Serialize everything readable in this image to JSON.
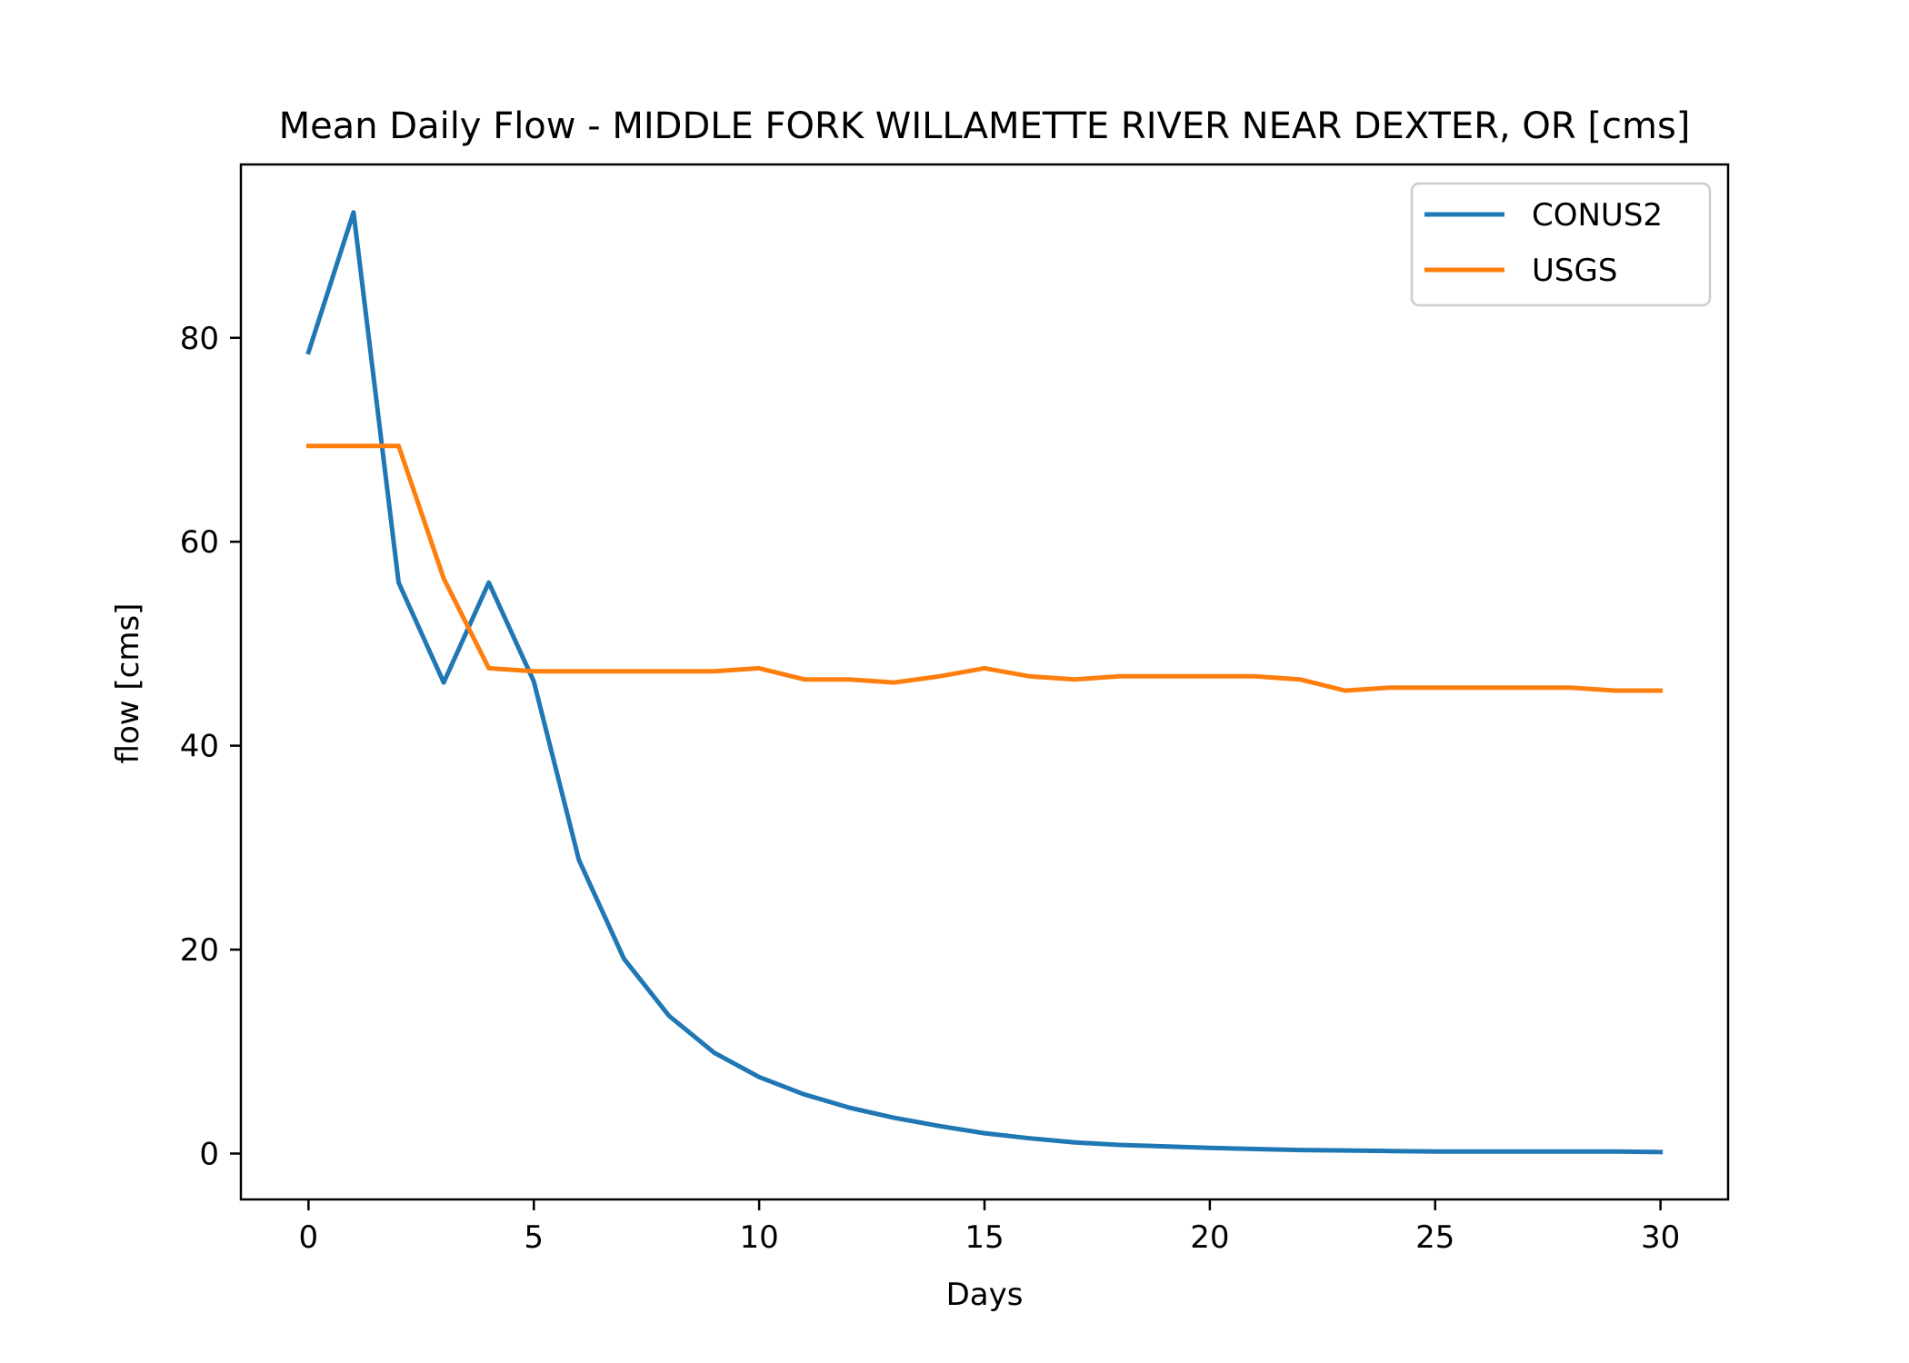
{
  "chart_data": {
    "type": "line",
    "title": "Mean Daily Flow - MIDDLE FORK WILLAMETTE RIVER NEAR DEXTER, OR [cms]",
    "xlabel": "Days",
    "ylabel": "flow [cms]",
    "xlim": [
      -1.5,
      31.5
    ],
    "ylim": [
      -4.5,
      97
    ],
    "xticks": [
      0,
      5,
      10,
      15,
      20,
      25,
      30
    ],
    "yticks": [
      0,
      20,
      40,
      60,
      80
    ],
    "grid": false,
    "legend_position": "top-right",
    "x": [
      0,
      1,
      2,
      3,
      4,
      5,
      6,
      7,
      8,
      9,
      10,
      11,
      12,
      13,
      14,
      15,
      16,
      17,
      18,
      19,
      20,
      21,
      22,
      23,
      24,
      25,
      26,
      27,
      28,
      29,
      30
    ],
    "series": [
      {
        "name": "CONUS2",
        "color": "#1f77b4",
        "values": [
          78.6,
          92.3,
          56.0,
          46.2,
          56.0,
          46.3,
          28.8,
          19.1,
          13.5,
          9.9,
          7.5,
          5.8,
          4.5,
          3.5,
          2.7,
          2.0,
          1.5,
          1.1,
          0.85,
          0.7,
          0.55,
          0.45,
          0.35,
          0.3,
          0.25,
          0.2,
          0.2,
          0.2,
          0.2,
          0.2,
          0.15
        ]
      },
      {
        "name": "USGS",
        "color": "#ff7f0e",
        "values": [
          69.4,
          69.4,
          69.4,
          56.4,
          47.6,
          47.3,
          47.3,
          47.3,
          47.3,
          47.3,
          47.6,
          46.5,
          46.5,
          46.2,
          46.8,
          47.6,
          46.8,
          46.5,
          46.8,
          46.8,
          46.8,
          46.8,
          46.5,
          45.4,
          45.7,
          45.7,
          45.7,
          45.7,
          45.7,
          45.4,
          45.4
        ]
      }
    ]
  }
}
